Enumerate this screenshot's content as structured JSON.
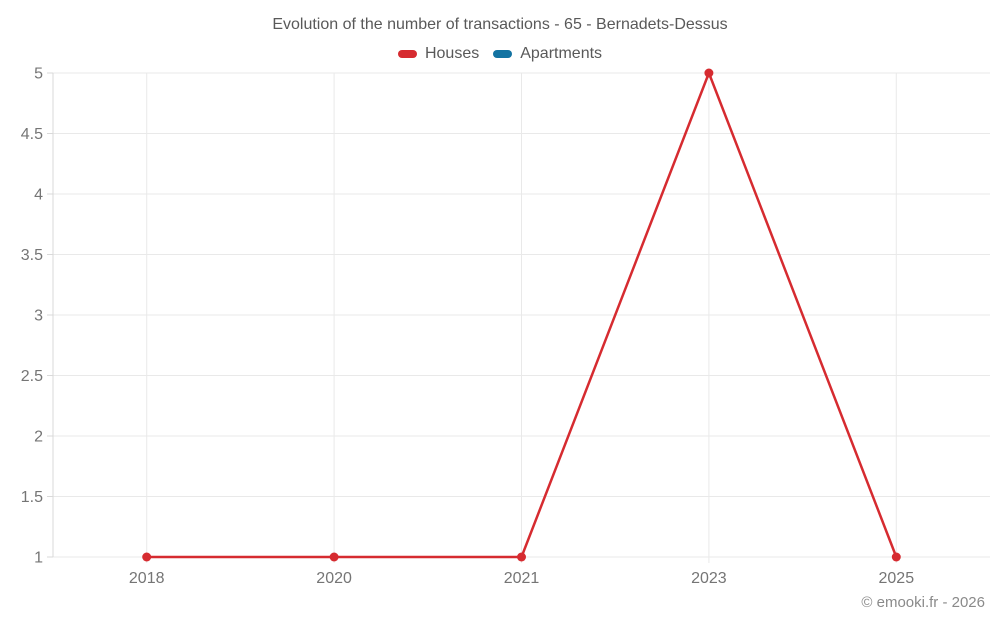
{
  "chart": {
    "title": "Evolution of the number of transactions - 65 - Bernadets-Dessus"
  },
  "legend": {
    "items": [
      {
        "label": "Houses",
        "color": "#d62b30"
      },
      {
        "label": "Apartments",
        "color": "#1373a2"
      }
    ]
  },
  "chart_data": {
    "type": "line",
    "title": "Evolution of the number of transactions - 65 - Bernadets-Dessus",
    "categories": [
      "2018",
      "2020",
      "2021",
      "2023",
      "2025"
    ],
    "series": [
      {
        "name": "Houses",
        "color": "#d62b30",
        "values": [
          1,
          1,
          1,
          5,
          1
        ]
      },
      {
        "name": "Apartments",
        "color": "#1373a2",
        "values": []
      }
    ],
    "xlabel": "",
    "ylabel": "",
    "ylim": [
      1,
      5
    ],
    "yticks": [
      1,
      1.5,
      2,
      2.5,
      3,
      3.5,
      4,
      4.5,
      5
    ],
    "grid": true,
    "legend_position": "top"
  },
  "footer": {
    "credit": "© emooki.fr - 2026"
  },
  "colors": {
    "grid": "#e9e9e9",
    "axis": "#d9d9d9",
    "text": "#757575"
  }
}
